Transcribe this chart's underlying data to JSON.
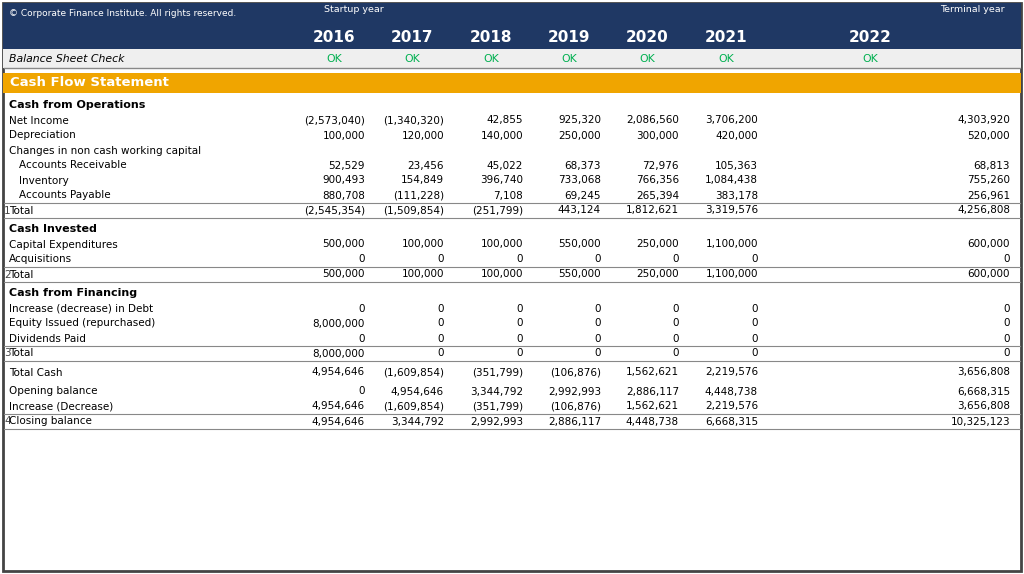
{
  "header_bg": "#1f3864",
  "header_text_color": "#ffffff",
  "orange_bg": "#f0a500",
  "ok_color": "#00b050",
  "label_color": "#000000",
  "number_color": "#000000",
  "border_color": "#888888",
  "bg_color": "#ffffff",
  "line_color": "#aaaaaa",
  "copyright": "© Corporate Finance Institute. All rights reserved.",
  "startup_label": "Startup year",
  "terminal_label": "Terminal year",
  "years": [
    "2016",
    "2017",
    "2018",
    "2019",
    "2020",
    "2021",
    "2022"
  ],
  "balance_sheet_label": "Balance Sheet Check",
  "ok_values": [
    "OK",
    "OK",
    "OK",
    "OK",
    "OK",
    "OK",
    "OK"
  ],
  "cash_flow_title": "Cash Flow Statement",
  "sections": [
    {
      "title": "Cash from Operations",
      "rows": [
        {
          "label": "Net Income",
          "indent": 0,
          "values": [
            "(2,573,040)",
            "(1,340,320)",
            "42,855",
            "925,320",
            "2,086,560",
            "3,706,200",
            "4,303,920"
          ]
        },
        {
          "label": "Depreciation",
          "indent": 0,
          "values": [
            "100,000",
            "120,000",
            "140,000",
            "250,000",
            "300,000",
            "420,000",
            "520,000"
          ]
        },
        {
          "label": "Changes in non cash working capital",
          "indent": 0,
          "values": [
            "",
            "",
            "",
            "",
            "",
            "",
            ""
          ]
        },
        {
          "label": "Accounts Receivable",
          "indent": 1,
          "values": [
            "52,529",
            "23,456",
            "45,022",
            "68,373",
            "72,976",
            "105,363",
            "68,813"
          ]
        },
        {
          "label": "Inventory",
          "indent": 1,
          "values": [
            "900,493",
            "154,849",
            "396,740",
            "733,068",
            "766,356",
            "1,084,438",
            "755,260"
          ]
        },
        {
          "label": "Accounts Payable",
          "indent": 1,
          "values": [
            "880,708",
            "(111,228)",
            "7,108",
            "69,245",
            "265,394",
            "383,178",
            "256,961"
          ]
        }
      ],
      "total_num": "1",
      "total_label": "Total",
      "total_values": [
        "(2,545,354)",
        "(1,509,854)",
        "(251,799)",
        "443,124",
        "1,812,621",
        "3,319,576",
        "4,256,808"
      ]
    },
    {
      "title": "Cash Invested",
      "rows": [
        {
          "label": "Capital Expenditures",
          "indent": 0,
          "values": [
            "500,000",
            "100,000",
            "100,000",
            "550,000",
            "250,000",
            "1,100,000",
            "600,000"
          ]
        },
        {
          "label": "Acquisitions",
          "indent": 0,
          "values": [
            "0",
            "0",
            "0",
            "0",
            "0",
            "0",
            "0"
          ]
        }
      ],
      "total_num": "2",
      "total_label": "Total",
      "total_values": [
        "500,000",
        "100,000",
        "100,000",
        "550,000",
        "250,000",
        "1,100,000",
        "600,000"
      ]
    },
    {
      "title": "Cash from Financing",
      "rows": [
        {
          "label": "Increase (decrease) in Debt",
          "indent": 0,
          "values": [
            "0",
            "0",
            "0",
            "0",
            "0",
            "0",
            "0"
          ]
        },
        {
          "label": "Equity Issued (repurchased)",
          "indent": 0,
          "values": [
            "8,000,000",
            "0",
            "0",
            "0",
            "0",
            "0",
            "0"
          ]
        },
        {
          "label": "Dividends Paid",
          "indent": 0,
          "values": [
            "0",
            "0",
            "0",
            "0",
            "0",
            "0",
            "0"
          ]
        }
      ],
      "total_num": "3",
      "total_label": "Total",
      "total_values": [
        "8,000,000",
        "0",
        "0",
        "0",
        "0",
        "0",
        "0"
      ]
    }
  ],
  "total_cash_label": "Total Cash",
  "total_cash_values": [
    "4,954,646",
    "(1,609,854)",
    "(351,799)",
    "(106,876)",
    "1,562,621",
    "2,219,576",
    "3,656,808"
  ],
  "opening_label": "Opening balance",
  "opening_values": [
    "0",
    "4,954,646",
    "3,344,792",
    "2,992,993",
    "2,886,117",
    "4,448,738",
    "6,668,315"
  ],
  "increase_label": "Increase (Decrease)",
  "increase_values": [
    "4,954,646",
    "(1,609,854)",
    "(351,799)",
    "(106,876)",
    "1,562,621",
    "2,219,576",
    "3,656,808"
  ],
  "closing_num": "4",
  "closing_label": "Closing balance",
  "closing_values": [
    "4,954,646",
    "3,344,792",
    "2,992,993",
    "2,886,117",
    "4,448,738",
    "6,668,315",
    "10,325,123"
  ]
}
